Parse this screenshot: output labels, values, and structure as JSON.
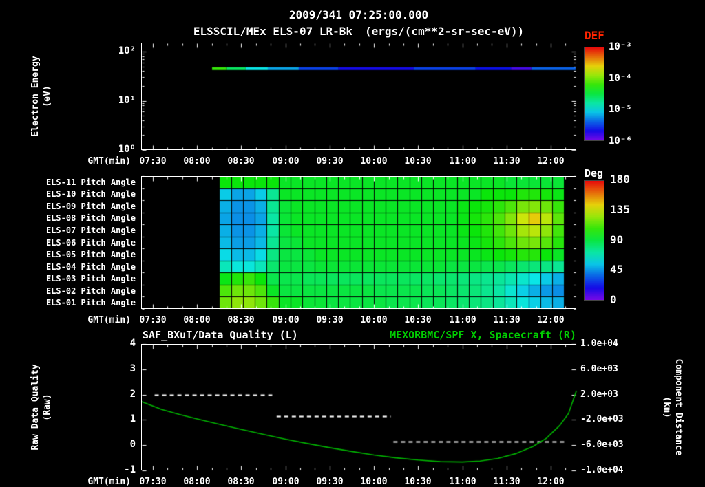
{
  "header": {
    "timestamp": "2009/341 07:25:00.000",
    "instrument_title": "ELSSCIL/MEx ELS-07 LR-Bk",
    "units_label": "(ergs/(cm**2-sr-sec-eV))"
  },
  "axes": {
    "x_label": "GMT(min)",
    "x_tick_labels": [
      "07:30",
      "08:00",
      "08:30",
      "09:00",
      "09:30",
      "10:00",
      "10:30",
      "11:00",
      "11:30",
      "12:00"
    ],
    "x_tick_values": [
      7.5,
      8.0,
      8.5,
      9.0,
      9.5,
      10.0,
      10.5,
      11.0,
      11.5,
      12.0
    ],
    "x_range": [
      7.3676,
      12.288
    ]
  },
  "colorbars": {
    "def": {
      "title": "DEF",
      "title_color": "#ff2400",
      "tick_labels": [
        "10⁻³",
        "10⁻⁴",
        "10⁻⁵",
        "10⁻⁶"
      ],
      "log_range": [
        -3,
        -6
      ]
    },
    "deg": {
      "title": "Deg",
      "title_color": "#ffffff",
      "tick_labels": [
        "180",
        "135",
        "90",
        "45",
        "0"
      ],
      "range": [
        0,
        180
      ]
    }
  },
  "chart_data": [
    {
      "id": "electron_energy_spectrogram",
      "type": "heatmap",
      "ylabel_lines": [
        "Electron Energy",
        "(eV)"
      ],
      "yscale": "log",
      "ylim": [
        1,
        100
      ],
      "ytick_labels": [
        "10²",
        "10¹",
        "10⁰"
      ],
      "colorbar_title": "DEF",
      "band": {
        "energy_eV": 45,
        "segments": [
          {
            "t0": 8.17,
            "t1": 8.33,
            "log_flux": -4.2
          },
          {
            "t0": 8.33,
            "t1": 8.55,
            "log_flux": -4.6
          },
          {
            "t0": 8.55,
            "t1": 8.8,
            "log_flux": -5.0
          },
          {
            "t0": 8.8,
            "t1": 9.15,
            "log_flux": -5.2
          },
          {
            "t0": 9.15,
            "t1": 9.6,
            "log_flux": -5.5
          },
          {
            "t0": 9.6,
            "t1": 10.45,
            "log_flux": -5.7
          },
          {
            "t0": 10.45,
            "t1": 11.15,
            "log_flux": -5.5
          },
          {
            "t0": 11.15,
            "t1": 11.55,
            "log_flux": -5.65
          },
          {
            "t0": 11.55,
            "t1": 11.78,
            "log_flux": -5.85
          },
          {
            "t0": 11.78,
            "t1": 12.28,
            "log_flux": -5.4
          }
        ]
      }
    },
    {
      "id": "pitch_angle_map",
      "type": "heatmap",
      "value_units": "Deg",
      "value_range": [
        0,
        180
      ],
      "t_start": 8.25,
      "t_step": 0.1345,
      "row_labels": [
        "ELS-11 Pitch Angle",
        "ELS-10 Pitch Angle",
        "ELS-09 Pitch Angle",
        "ELS-08 Pitch Angle",
        "ELS-07 Pitch Angle",
        "ELS-06 Pitch Angle",
        "ELS-05 Pitch Angle",
        "ELS-04 Pitch Angle",
        "ELS-03 Pitch Angle",
        "ELS-02 Pitch Angle",
        "ELS-01 Pitch Angle"
      ],
      "rows": [
        [
          100,
          100,
          100,
          100,
          100,
          95,
          95,
          95,
          95,
          95,
          95,
          95,
          95,
          95,
          95,
          95,
          95,
          95,
          95,
          95,
          95,
          95,
          95,
          95,
          92,
          92,
          92,
          92,
          92
        ],
        [
          55,
          48,
          48,
          55,
          75,
          95,
          95,
          95,
          95,
          95,
          95,
          95,
          95,
          95,
          95,
          95,
          95,
          95,
          95,
          95,
          95,
          95,
          100,
          100,
          100,
          104,
          104,
          102,
          98
        ],
        [
          50,
          45,
          45,
          50,
          75,
          92,
          95,
          95,
          95,
          95,
          95,
          95,
          95,
          95,
          95,
          95,
          95,
          95,
          95,
          95,
          98,
          100,
          102,
          106,
          112,
          120,
          122,
          118,
          108
        ],
        [
          48,
          44,
          44,
          48,
          72,
          92,
          95,
          95,
          95,
          95,
          95,
          95,
          95,
          95,
          95,
          95,
          95,
          95,
          95,
          95,
          98,
          102,
          106,
          112,
          122,
          135,
          145,
          132,
          115
        ],
        [
          50,
          45,
          45,
          50,
          72,
          92,
          95,
          95,
          95,
          95,
          95,
          95,
          95,
          95,
          95,
          95,
          95,
          95,
          95,
          95,
          98,
          100,
          104,
          110,
          118,
          128,
          132,
          124,
          110
        ],
        [
          52,
          47,
          47,
          52,
          75,
          90,
          92,
          95,
          95,
          95,
          95,
          95,
          95,
          95,
          95,
          95,
          95,
          95,
          95,
          95,
          96,
          98,
          102,
          106,
          112,
          118,
          120,
          114,
          105
        ],
        [
          58,
          52,
          52,
          58,
          78,
          90,
          90,
          92,
          95,
          95,
          95,
          95,
          95,
          95,
          95,
          95,
          95,
          95,
          95,
          95,
          95,
          96,
          98,
          100,
          102,
          105,
          105,
          100,
          95
        ],
        [
          68,
          62,
          62,
          68,
          82,
          90,
          90,
          90,
          92,
          92,
          92,
          92,
          92,
          92,
          92,
          92,
          92,
          92,
          92,
          90,
          90,
          90,
          88,
          88,
          85,
          82,
          80,
          78,
          75
        ],
        [
          98,
          104,
          108,
          100,
          88,
          88,
          88,
          86,
          86,
          85,
          85,
          85,
          85,
          85,
          85,
          85,
          84,
          84,
          82,
          82,
          80,
          78,
          76,
          74,
          70,
          65,
          60,
          55,
          50
        ],
        [
          112,
          118,
          118,
          112,
          95,
          90,
          90,
          90,
          90,
          90,
          90,
          90,
          90,
          88,
          88,
          88,
          88,
          86,
          86,
          84,
          82,
          80,
          76,
          72,
          64,
          56,
          50,
          46,
          44
        ],
        [
          118,
          124,
          124,
          118,
          108,
          95,
          95,
          92,
          92,
          90,
          90,
          90,
          90,
          90,
          88,
          88,
          88,
          86,
          86,
          84,
          82,
          80,
          78,
          74,
          68,
          62,
          56,
          52,
          50
        ]
      ]
    },
    {
      "id": "quality_and_distance",
      "type": "line",
      "left_title": "SAF_BXuT/Data Quality (L)",
      "right_title": "MEXORBMC/SPF X, Spacecraft (R)",
      "right_title_color": "#00cc00",
      "left_ylabel_lines": [
        "Raw Data Quality",
        "(Raw)"
      ],
      "right_ylabel_lines": [
        "Component Distance",
        "(km)"
      ],
      "left_ylim": [
        -1,
        4
      ],
      "left_tick_labels": [
        "4",
        "3",
        "2",
        "1",
        "0",
        "-1"
      ],
      "right_ylim": [
        -10000,
        10000
      ],
      "right_tick_labels": [
        "1.0e+04",
        "6.0e+03",
        "2.0e+03",
        "-2.0e+03",
        "-6.0e+03",
        "-1.0e+04"
      ],
      "quality_series": {
        "name": "SAF_BXuT/Data Quality",
        "color": "#ffffff",
        "style": "dashed",
        "segments": [
          {
            "t0": 7.52,
            "t1": 8.85,
            "value": 2.0
          },
          {
            "t0": 8.9,
            "t1": 10.19,
            "value": 1.15
          },
          {
            "t0": 10.22,
            "t1": 12.17,
            "value": 0.15
          }
        ]
      },
      "distance_series": {
        "name": "MEXORBMC/SPF X Spacecraft",
        "color": "#00b400",
        "points": [
          [
            7.37,
            900
          ],
          [
            7.6,
            -350
          ],
          [
            7.8,
            -1150
          ],
          [
            8.0,
            -1850
          ],
          [
            8.25,
            -2700
          ],
          [
            8.5,
            -3500
          ],
          [
            8.75,
            -4300
          ],
          [
            9.0,
            -5050
          ],
          [
            9.25,
            -5750
          ],
          [
            9.5,
            -6400
          ],
          [
            9.75,
            -7000
          ],
          [
            10.0,
            -7550
          ],
          [
            10.25,
            -8000
          ],
          [
            10.5,
            -8350
          ],
          [
            10.75,
            -8600
          ],
          [
            11.0,
            -8650
          ],
          [
            11.2,
            -8500
          ],
          [
            11.4,
            -8100
          ],
          [
            11.6,
            -7350
          ],
          [
            11.8,
            -6200
          ],
          [
            11.95,
            -4900
          ],
          [
            12.1,
            -2900
          ],
          [
            12.2,
            -1000
          ],
          [
            12.29,
            2600
          ]
        ]
      }
    }
  ]
}
